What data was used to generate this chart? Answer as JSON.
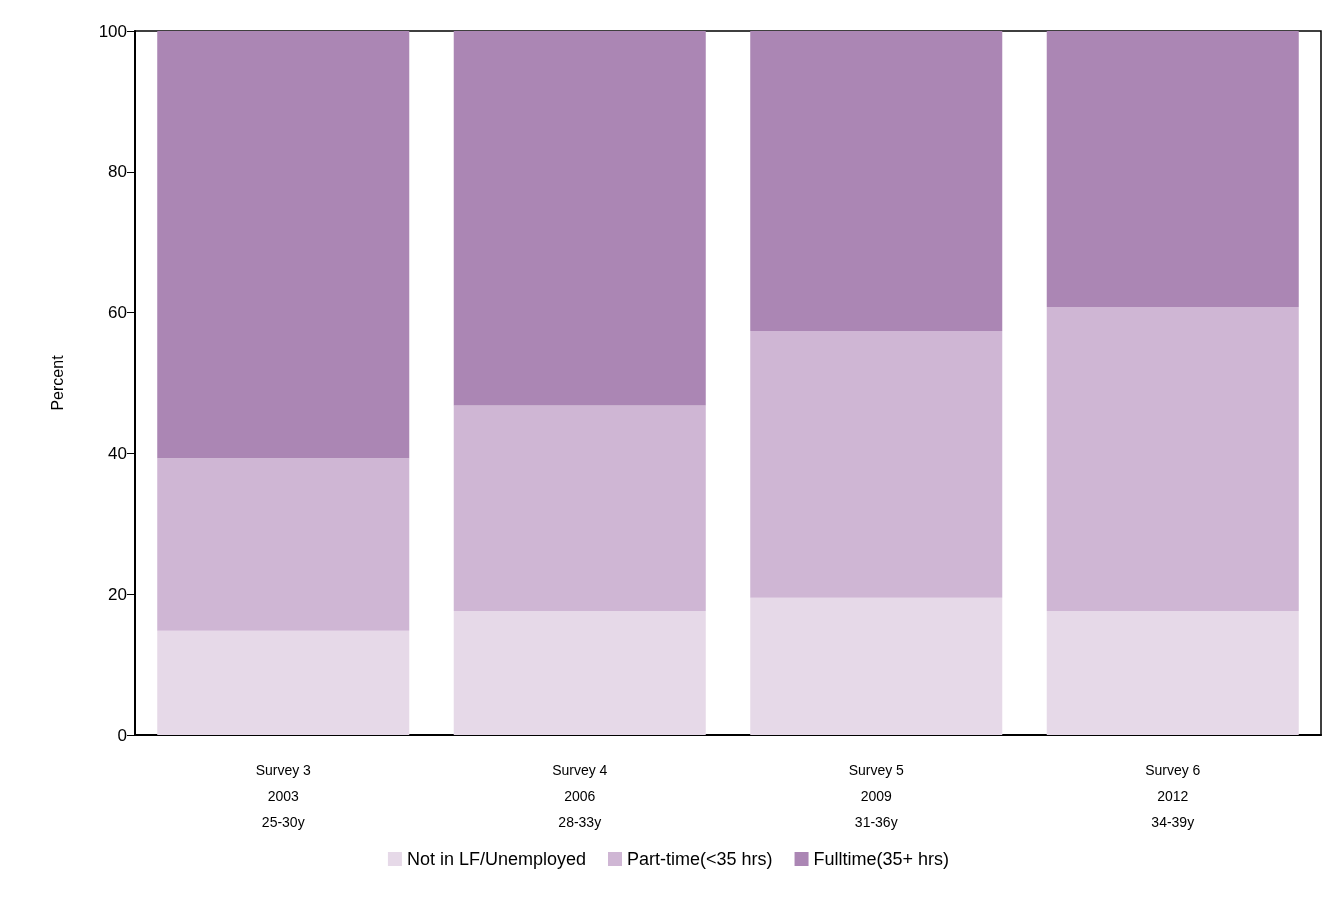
{
  "chart_data": {
    "type": "bar",
    "stacked": true,
    "ylabel": "Percent",
    "categories": [
      "Survey 3\n2003\n25-30y",
      "Survey 4\n2006\n28-33y",
      "Survey 5\n2009\n31-36y",
      "Survey 6\n2012\n34-39y"
    ],
    "series": [
      {
        "name": "Not in LF/Unemployed",
        "color": "#e6d9e8",
        "values": [
          14.8,
          17.6,
          19.5,
          17.6
        ]
      },
      {
        "name": "Part-time(<35 hrs)",
        "color": "#cfb6d4",
        "values": [
          24.5,
          29.2,
          37.9,
          43.2
        ]
      },
      {
        "name": "Fulltime(35+ hrs)",
        "color": "#ab86b4",
        "values": [
          60.7,
          53.2,
          42.6,
          39.2
        ]
      }
    ],
    "ylim": [
      0,
      100
    ],
    "yticks": [
      0,
      20,
      40,
      60,
      80,
      100
    ],
    "grid": false,
    "legend": "bottom"
  }
}
